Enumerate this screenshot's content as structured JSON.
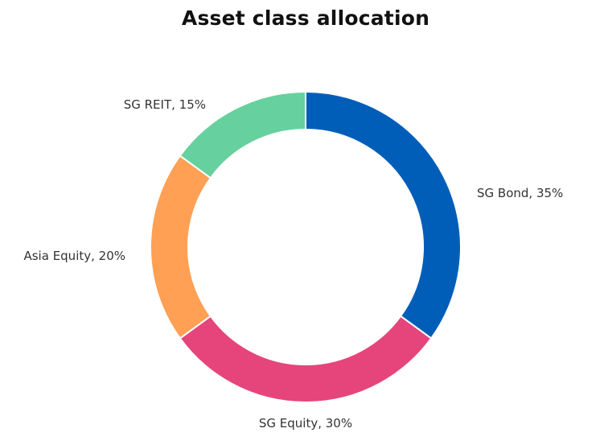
{
  "chart_data": {
    "type": "pie",
    "title": "Asset class allocation",
    "slices": [
      {
        "label": "SG Bond, 35%",
        "value": 35,
        "color": "#005EB8"
      },
      {
        "label": "SG Equity, 30%",
        "value": 30,
        "color": "#E5457B"
      },
      {
        "label": "Asia Equity, 20%",
        "value": 20,
        "color": "#FFA055"
      },
      {
        "label": "SG REIT, 15%",
        "value": 15,
        "color": "#66D19E"
      }
    ]
  }
}
